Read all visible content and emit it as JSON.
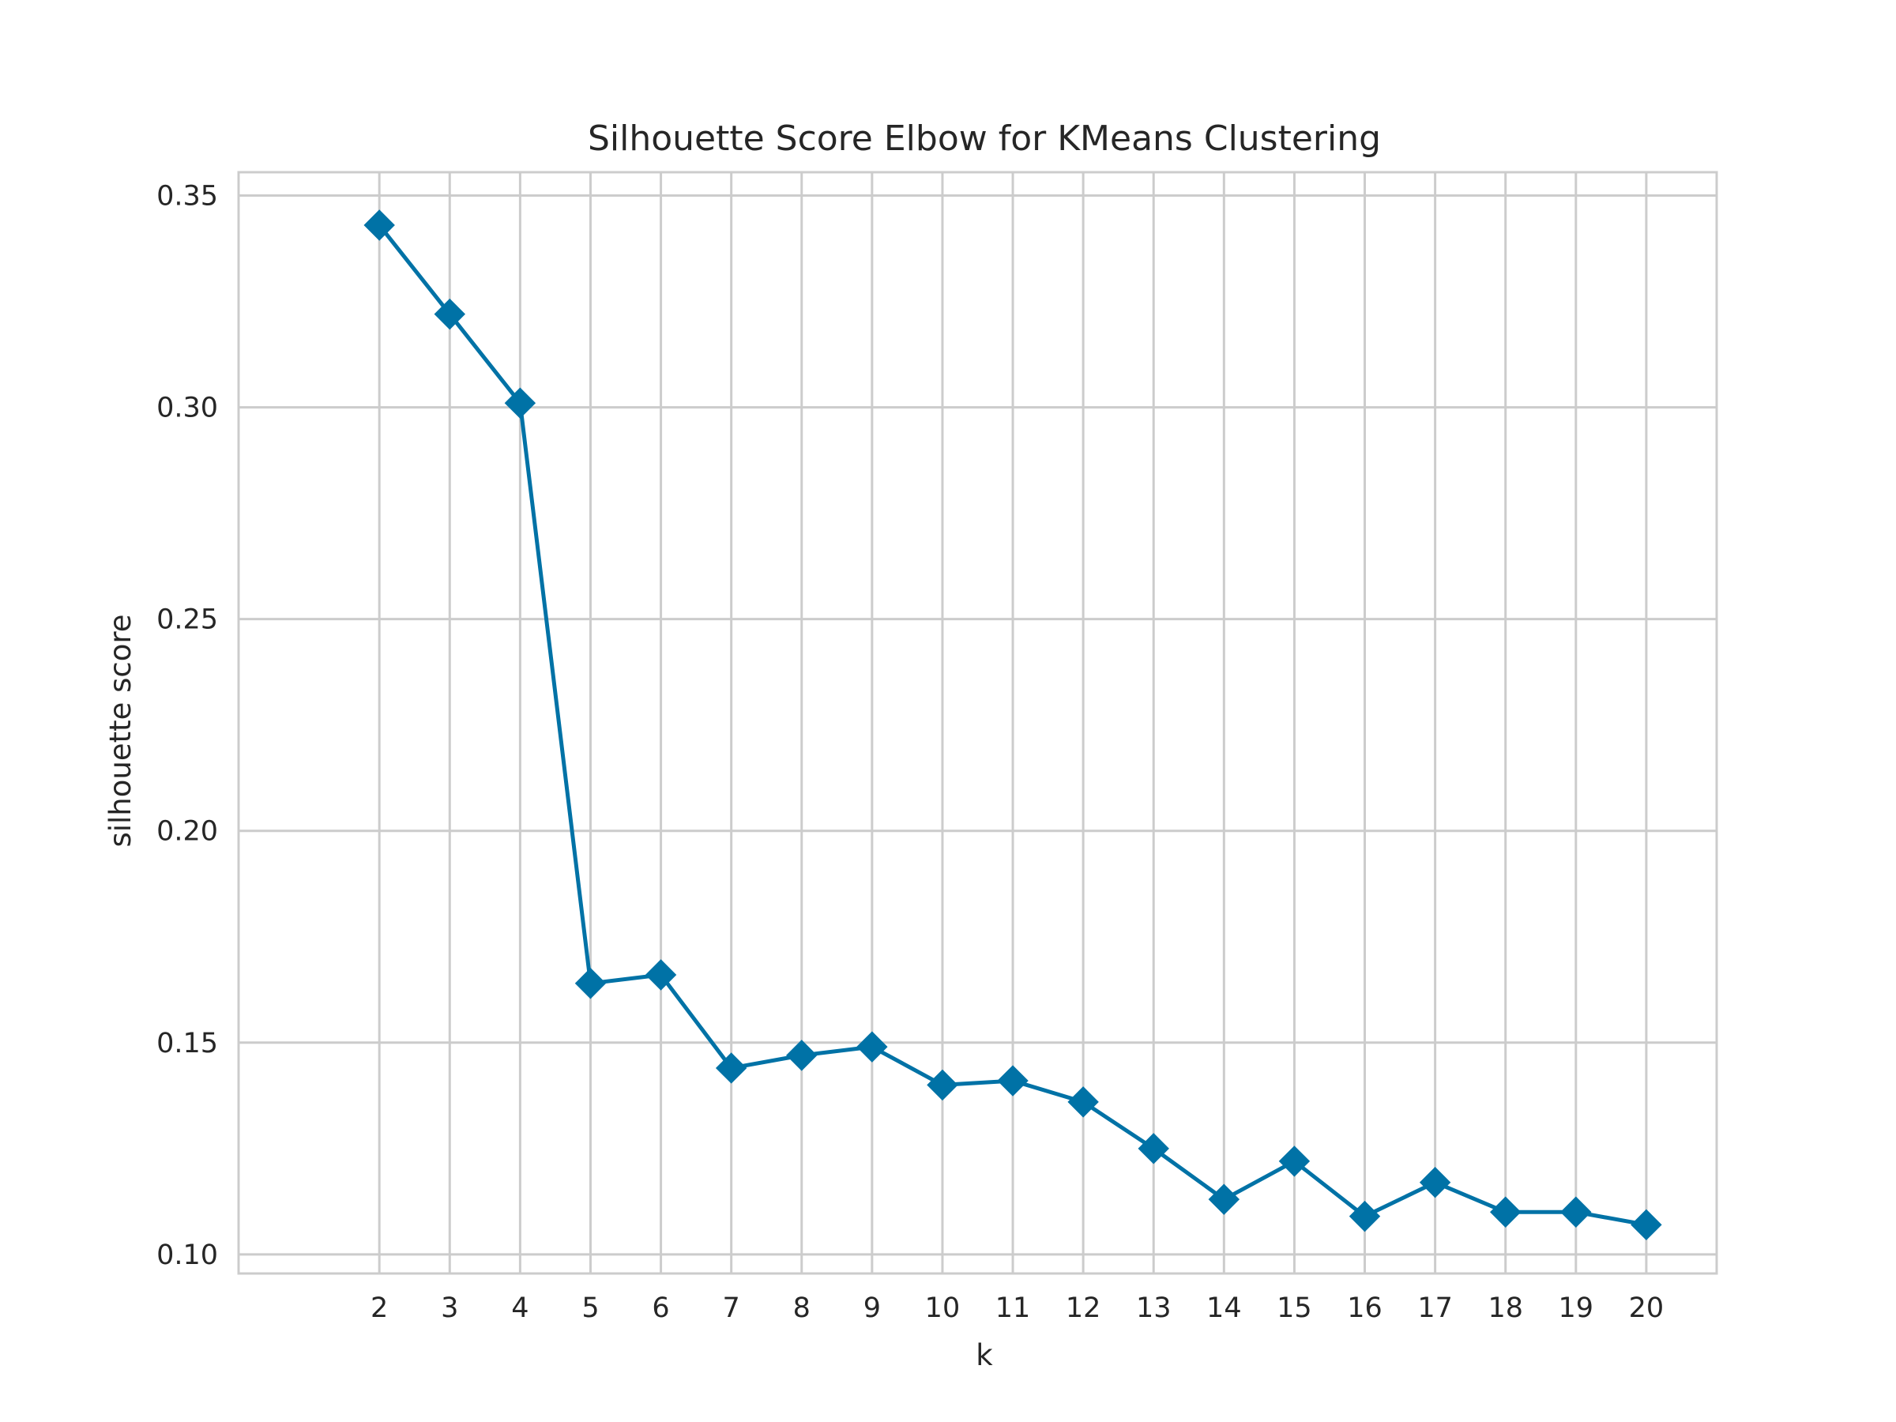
{
  "chart_data": {
    "type": "line",
    "title": "Silhouette Score Elbow for KMeans Clustering",
    "xlabel": "k",
    "ylabel": "silhouette score",
    "x": [
      2,
      3,
      4,
      5,
      6,
      7,
      8,
      9,
      10,
      11,
      12,
      13,
      14,
      15,
      16,
      17,
      18,
      19,
      20
    ],
    "series": [
      {
        "values": [
          0.343,
          0.322,
          0.301,
          0.164,
          0.166,
          0.144,
          0.147,
          0.149,
          0.14,
          0.141,
          0.136,
          0.125,
          0.113,
          0.122,
          0.109,
          0.117,
          0.11,
          0.11,
          0.107
        ],
        "color": "#0072a6",
        "marker": "diamond"
      }
    ],
    "xlim": [
      0,
      21
    ],
    "ylim": [
      0.0955,
      0.3555
    ],
    "yticks": [
      0.1,
      0.15,
      0.2,
      0.25,
      0.3,
      0.35
    ],
    "ytick_labels": [
      "0.10",
      "0.15",
      "0.20",
      "0.25",
      "0.30",
      "0.35"
    ],
    "xtick_labels": [
      "2",
      "3",
      "4",
      "5",
      "6",
      "7",
      "8",
      "9",
      "10",
      "11",
      "12",
      "13",
      "14",
      "15",
      "16",
      "17",
      "18",
      "19",
      "20"
    ],
    "grid": true,
    "grid_color": "#cccccc",
    "frame_color": "#cccccc"
  }
}
